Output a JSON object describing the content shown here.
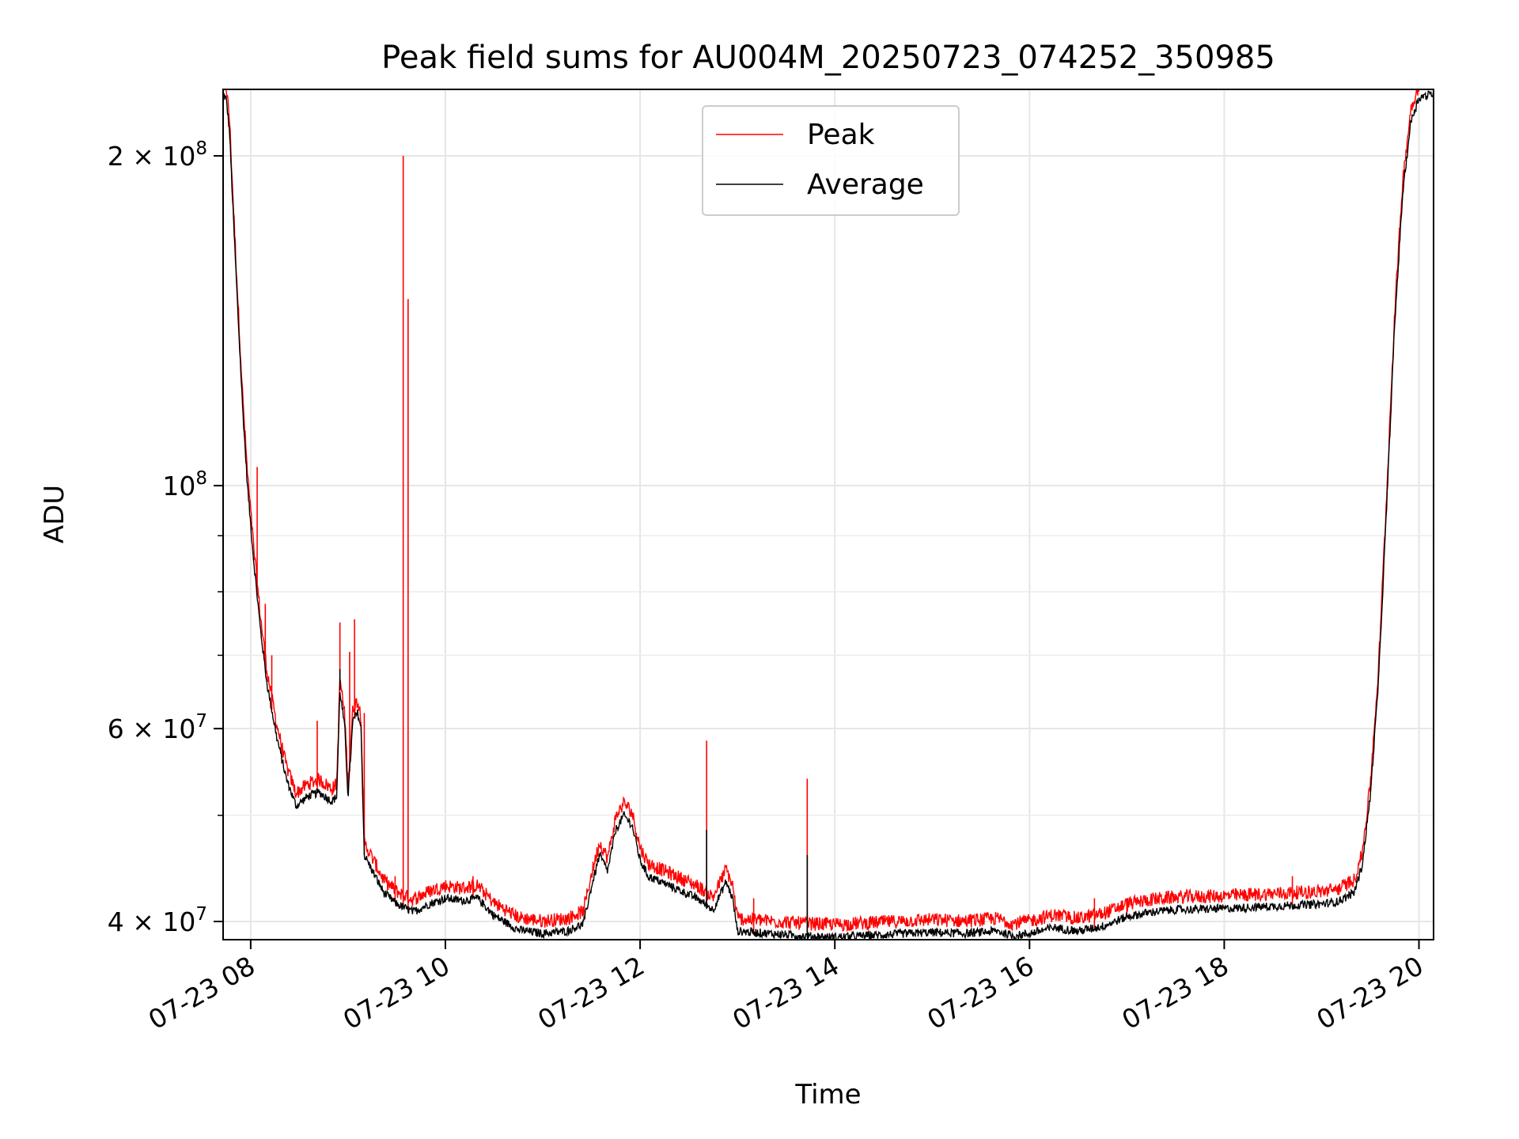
{
  "chart_data": {
    "type": "line",
    "title": "Peak field sums for AU004M_20250723_074252_350985",
    "xlabel": "Time",
    "ylabel": "ADU",
    "yscale": "log",
    "grid": true,
    "legend_placement": "upper-center",
    "xlim": [
      "2025-07-23 07:43",
      "2025-07-23 20:09"
    ],
    "ylim": [
      38500000,
      230000000
    ],
    "x_ticks": [
      {
        "value": "2025-07-23 08:00",
        "label": "07-23 08"
      },
      {
        "value": "2025-07-23 10:00",
        "label": "07-23 10"
      },
      {
        "value": "2025-07-23 12:00",
        "label": "07-23 12"
      },
      {
        "value": "2025-07-23 14:00",
        "label": "07-23 14"
      },
      {
        "value": "2025-07-23 16:00",
        "label": "07-23 16"
      },
      {
        "value": "2025-07-23 18:00",
        "label": "07-23 18"
      },
      {
        "value": "2025-07-23 20:00",
        "label": "07-23 20"
      }
    ],
    "y_ticks": [
      {
        "value": 40000000,
        "base": "4",
        "exp": "7"
      },
      {
        "value": 60000000,
        "base": "6",
        "exp": "7"
      },
      {
        "value": 100000000,
        "base": "",
        "exp": "8"
      },
      {
        "value": 200000000,
        "base": "2",
        "exp": "8"
      }
    ],
    "y_minor_ticks": [
      50000000,
      70000000,
      80000000,
      90000000
    ],
    "series": [
      {
        "name": "Average",
        "color": "#000000",
        "points": [
          [
            "2025-07-23 07:43",
            228000000
          ],
          [
            "2025-07-23 07:45",
            225000000
          ],
          [
            "2025-07-23 07:47",
            210000000
          ],
          [
            "2025-07-23 07:49",
            180000000
          ],
          [
            "2025-07-23 07:52",
            145000000
          ],
          [
            "2025-07-23 07:55",
            118000000
          ],
          [
            "2025-07-23 07:58",
            100000000
          ],
          [
            "2025-07-23 08:02",
            85000000
          ],
          [
            "2025-07-23 08:06",
            74000000
          ],
          [
            "2025-07-23 08:10",
            66000000
          ],
          [
            "2025-07-23 08:16",
            59000000
          ],
          [
            "2025-07-23 08:22",
            54000000
          ],
          [
            "2025-07-23 08:28",
            51000000
          ],
          [
            "2025-07-23 08:35",
            52000000
          ],
          [
            "2025-07-23 08:42",
            52500000
          ],
          [
            "2025-07-23 08:50",
            51500000
          ],
          [
            "2025-07-23 08:53",
            52000000
          ],
          [
            "2025-07-23 08:55",
            65000000
          ],
          [
            "2025-07-23 08:58",
            60000000
          ],
          [
            "2025-07-23 09:00",
            52000000
          ],
          [
            "2025-07-23 09:03",
            61000000
          ],
          [
            "2025-07-23 09:06",
            62000000
          ],
          [
            "2025-07-23 09:08",
            60000000
          ],
          [
            "2025-07-23 09:10",
            46000000
          ],
          [
            "2025-07-23 09:15",
            44500000
          ],
          [
            "2025-07-23 09:22",
            42500000
          ],
          [
            "2025-07-23 09:30",
            41500000
          ],
          [
            "2025-07-23 09:40",
            40800000
          ],
          [
            "2025-07-23 09:50",
            41500000
          ],
          [
            "2025-07-23 10:00",
            42000000
          ],
          [
            "2025-07-23 10:10",
            41800000
          ],
          [
            "2025-07-23 10:20",
            42000000
          ],
          [
            "2025-07-23 10:30",
            40500000
          ],
          [
            "2025-07-23 10:45",
            39300000
          ],
          [
            "2025-07-23 11:00",
            39000000
          ],
          [
            "2025-07-23 11:15",
            39200000
          ],
          [
            "2025-07-23 11:25",
            39800000
          ],
          [
            "2025-07-23 11:30",
            43000000
          ],
          [
            "2025-07-23 11:35",
            46000000
          ],
          [
            "2025-07-23 11:40",
            44500000
          ],
          [
            "2025-07-23 11:45",
            48500000
          ],
          [
            "2025-07-23 11:50",
            50000000
          ],
          [
            "2025-07-23 11:55",
            49000000
          ],
          [
            "2025-07-23 12:00",
            45500000
          ],
          [
            "2025-07-23 12:05",
            44000000
          ],
          [
            "2025-07-23 12:20",
            43000000
          ],
          [
            "2025-07-23 12:35",
            42000000
          ],
          [
            "2025-07-23 12:45",
            41000000
          ],
          [
            "2025-07-23 12:53",
            43500000
          ],
          [
            "2025-07-23 12:57",
            42000000
          ],
          [
            "2025-07-23 13:00",
            39200000
          ],
          [
            "2025-07-23 13:20",
            39000000
          ],
          [
            "2025-07-23 13:40",
            38800000
          ],
          [
            "2025-07-23 14:00",
            38700000
          ],
          [
            "2025-07-23 14:30",
            38900000
          ],
          [
            "2025-07-23 15:00",
            39100000
          ],
          [
            "2025-07-23 15:20",
            39000000
          ],
          [
            "2025-07-23 15:40",
            39200000
          ],
          [
            "2025-07-23 15:50",
            38800000
          ],
          [
            "2025-07-23 16:00",
            39000000
          ],
          [
            "2025-07-23 16:15",
            39500000
          ],
          [
            "2025-07-23 16:30",
            39200000
          ],
          [
            "2025-07-23 16:45",
            39600000
          ],
          [
            "2025-07-23 17:00",
            40400000
          ],
          [
            "2025-07-23 17:15",
            40800000
          ],
          [
            "2025-07-23 17:30",
            41000000
          ],
          [
            "2025-07-23 18:00",
            41100000
          ],
          [
            "2025-07-23 18:30",
            41300000
          ],
          [
            "2025-07-23 19:00",
            41500000
          ],
          [
            "2025-07-23 19:10",
            41700000
          ],
          [
            "2025-07-23 19:20",
            42500000
          ],
          [
            "2025-07-23 19:25",
            45000000
          ],
          [
            "2025-07-23 19:30",
            52000000
          ],
          [
            "2025-07-23 19:35",
            66000000
          ],
          [
            "2025-07-23 19:40",
            95000000
          ],
          [
            "2025-07-23 19:45",
            140000000
          ],
          [
            "2025-07-23 19:50",
            185000000
          ],
          [
            "2025-07-23 19:55",
            215000000
          ],
          [
            "2025-07-23 20:00",
            226000000
          ],
          [
            "2025-07-23 20:09",
            228000000
          ]
        ]
      },
      {
        "name": "Peak",
        "color": "#ff0000",
        "spikes": [
          [
            "2025-07-23 08:04",
            104000000
          ],
          [
            "2025-07-23 08:09",
            78000000
          ],
          [
            "2025-07-23 08:13",
            70000000
          ],
          [
            "2025-07-23 08:19",
            58000000
          ],
          [
            "2025-07-23 08:41",
            61000000
          ],
          [
            "2025-07-23 08:55",
            75000000
          ],
          [
            "2025-07-23 09:01",
            70500000
          ],
          [
            "2025-07-23 09:04",
            75500000
          ],
          [
            "2025-07-23 09:10",
            62000000
          ],
          [
            "2025-07-23 09:29",
            44000000
          ],
          [
            "2025-07-23 09:34",
            200000000
          ],
          [
            "2025-07-23 09:37",
            148000000
          ],
          [
            "2025-07-23 10:17",
            44000000
          ],
          [
            "2025-07-23 12:41",
            58500000
          ],
          [
            "2025-07-23 13:10",
            42000000
          ],
          [
            "2025-07-23 13:43",
            54000000
          ],
          [
            "2025-07-23 16:40",
            42000000
          ],
          [
            "2025-07-23 17:00",
            42000000
          ],
          [
            "2025-07-23 18:42",
            44000000
          ]
        ]
      }
    ]
  }
}
